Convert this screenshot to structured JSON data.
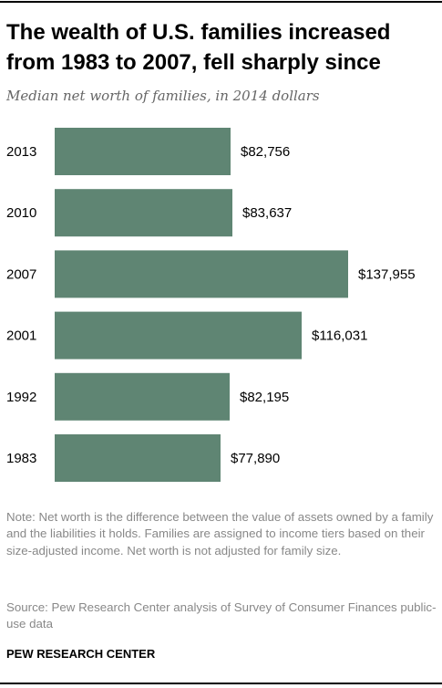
{
  "header": {
    "title": "The wealth of U.S. families increased from 1983 to 2007, fell sharply since",
    "subtitle": "Median net worth of families, in 2014 dollars"
  },
  "footer": {
    "note": "Note: Net worth is the difference between the value of assets owned by a family and the liabilities it holds. Families are assigned to income tiers based on their size-adjusted income. Net worth is not adjusted for family size.",
    "source": "Source: Pew Research Center analysis of Survey of Consumer Finances public-use data",
    "brand": "PEW RESEARCH CENTER"
  },
  "colors": {
    "bar": "#5f8573",
    "rule": "#000000"
  },
  "chart_data": {
    "type": "bar",
    "orientation": "horizontal",
    "title": "The wealth of U.S. families increased from 1983 to 2007, fell sharply since",
    "subtitle": "Median net worth of families, in 2014 dollars",
    "categories": [
      "2013",
      "2010",
      "2007",
      "2001",
      "1992",
      "1983"
    ],
    "values": [
      82756,
      83637,
      137955,
      116031,
      82195,
      77890
    ],
    "value_labels": [
      "$82,756",
      "$83,637",
      "$137,955",
      "$116,031",
      "$82,195",
      "$77,890"
    ],
    "xlim": [
      0,
      137955
    ],
    "grid": false,
    "legend": "none"
  }
}
